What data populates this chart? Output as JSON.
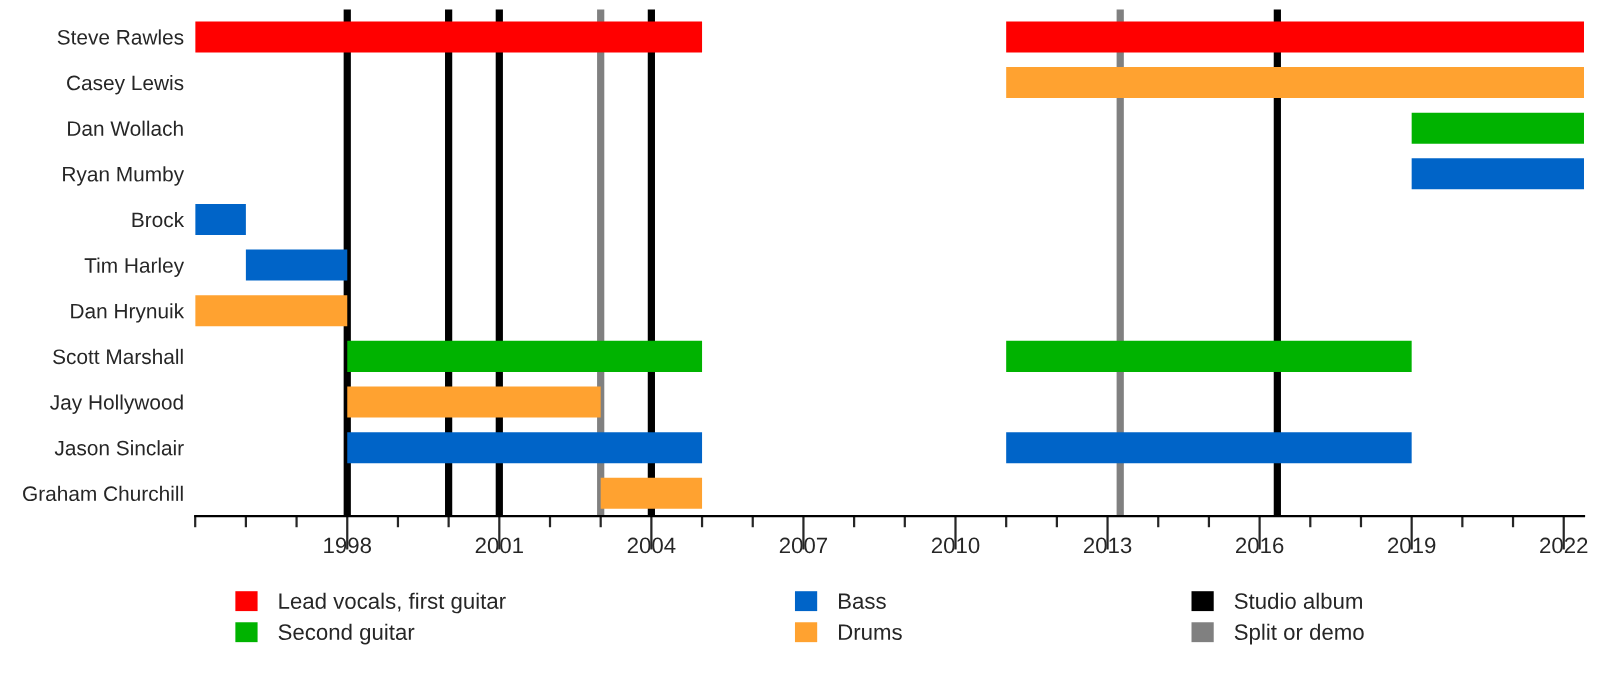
{
  "chart_data": {
    "type": "bar",
    "orientation": "horizontal",
    "categories": [
      "Steve Rawles",
      "Casey Lewis",
      "Dan Wollach",
      "Ryan Mumby",
      "Brock",
      "Tim Harley",
      "Dan Hrynuik",
      "Scott Marshall",
      "Jay Hollywood",
      "Jason Sinclair",
      "Graham Churchill"
    ],
    "series": [
      {
        "name": "Lead vocals, first guitar",
        "color": "#ff0000",
        "base": [
          1995,
          null,
          null,
          null,
          null,
          null,
          null,
          null,
          null,
          null,
          null
        ],
        "values": [
          10,
          null,
          null,
          null,
          null,
          null,
          null,
          null,
          null,
          null,
          null
        ]
      },
      {
        "color": "#ff0000",
        "base": [
          2011,
          null,
          null,
          null,
          null,
          null,
          null,
          null,
          null,
          null,
          null
        ],
        "values": [
          11.4,
          null,
          null,
          null,
          null,
          null,
          null,
          null,
          null,
          null,
          null
        ]
      },
      {
        "name": "Second guitar",
        "color": "#00b300",
        "base": [
          null,
          null,
          2019,
          null,
          null,
          null,
          null,
          1998,
          null,
          null,
          null
        ],
        "values": [
          null,
          null,
          3.4,
          null,
          null,
          null,
          null,
          7,
          null,
          null,
          null
        ]
      },
      {
        "color": "#00b300",
        "base": [
          null,
          null,
          null,
          null,
          null,
          null,
          null,
          2011,
          null,
          null,
          null
        ],
        "values": [
          null,
          null,
          null,
          null,
          null,
          null,
          null,
          8,
          null,
          null,
          null
        ]
      },
      {
        "name": "Bass",
        "color": "#0064c8",
        "base": [
          null,
          null,
          null,
          2019,
          1995,
          1996,
          null,
          null,
          null,
          1998,
          null
        ],
        "values": [
          null,
          null,
          null,
          3.4,
          1,
          2,
          null,
          null,
          null,
          7,
          null
        ]
      },
      {
        "color": "#0064c8",
        "base": [
          null,
          null,
          null,
          null,
          null,
          null,
          null,
          null,
          null,
          2011,
          null
        ],
        "values": [
          null,
          null,
          null,
          null,
          null,
          null,
          null,
          null,
          null,
          8,
          null
        ]
      },
      {
        "name": "Drums",
        "color": "#ffa230",
        "base": [
          null,
          2011,
          null,
          null,
          null,
          null,
          1995,
          null,
          1998,
          null,
          2003
        ],
        "values": [
          null,
          11.4,
          null,
          null,
          null,
          null,
          3,
          null,
          5,
          null,
          2
        ]
      }
    ],
    "xlim": [
      1995,
      2022.4
    ],
    "xticks": [
      {
        "value": 1995,
        "label": null
      },
      {
        "value": 1996,
        "label": null
      },
      {
        "value": 1997,
        "label": null
      },
      1998,
      {
        "value": 1999,
        "label": null
      },
      {
        "value": 2000,
        "label": null
      },
      2001,
      {
        "value": 2002,
        "label": null
      },
      {
        "value": 2003,
        "label": null
      },
      2004,
      {
        "value": 2005,
        "label": null
      },
      {
        "value": 2006,
        "label": null
      },
      2007,
      {
        "value": 2008,
        "label": null
      },
      {
        "value": 2009,
        "label": null
      },
      2010,
      {
        "value": 2011,
        "label": null
      },
      {
        "value": 2012,
        "label": null
      },
      2013,
      {
        "value": 2014,
        "label": null
      },
      {
        "value": 2015,
        "label": null
      },
      2016,
      {
        "value": 2017,
        "label": null
      },
      {
        "value": 2018,
        "label": null
      },
      2019,
      {
        "value": 2020,
        "label": null
      },
      {
        "value": 2021,
        "label": null
      },
      2022
    ],
    "ref_lines": [
      {
        "axis": "x",
        "value": 1998,
        "color": "#000000",
        "label": "Studio album"
      },
      {
        "axis": "x",
        "value": 2000,
        "color": "#000000"
      },
      {
        "axis": "x",
        "value": 2001,
        "color": "#000000"
      },
      {
        "axis": "x",
        "value": 2004,
        "color": "#000000"
      },
      {
        "axis": "x",
        "value": 2016.35,
        "color": "#000000"
      },
      {
        "axis": "x",
        "value": 2003,
        "color": "#808080",
        "label": "Split or demo"
      },
      {
        "axis": "x",
        "value": 2013.25,
        "color": "#808080"
      }
    ],
    "legend": "bottom",
    "grid": false
  }
}
